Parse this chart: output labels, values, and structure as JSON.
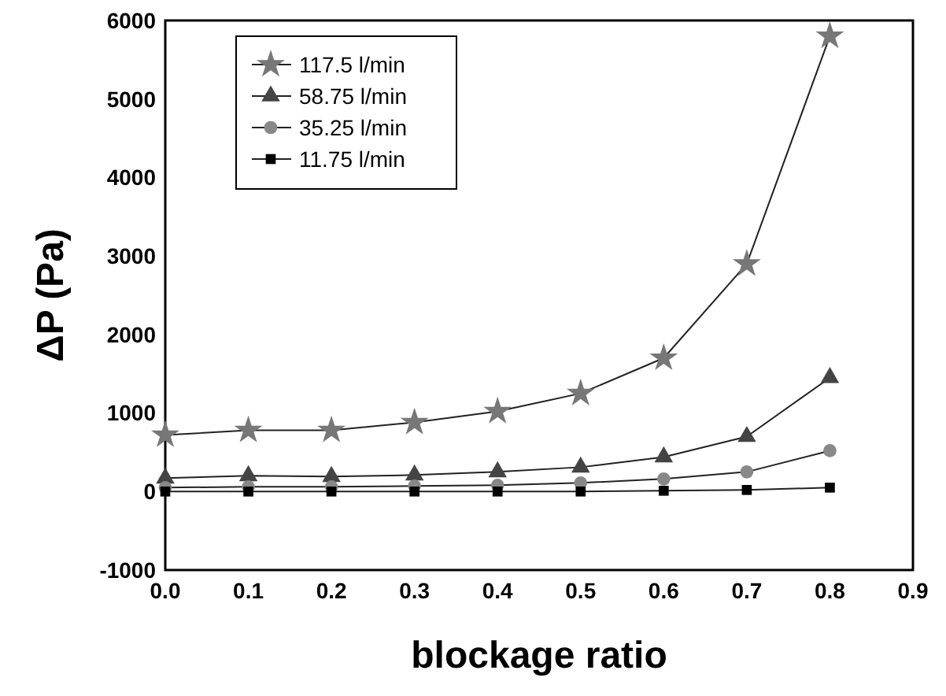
{
  "chart_data": {
    "type": "line",
    "xlabel": "blockage ratio",
    "ylabel": "ΔP (Pa)",
    "x": [
      0,
      0.1,
      0.2,
      0.3,
      0.4,
      0.5,
      0.6,
      0.7,
      0.8
    ],
    "series": [
      {
        "name": "117.5 l/min",
        "color": "#777777",
        "marker": "star",
        "values": [
          720,
          780,
          780,
          880,
          1020,
          1250,
          1700,
          2900,
          5800
        ]
      },
      {
        "name": "58.75 l/min",
        "color": "#444444",
        "marker": "triangle",
        "values": [
          170,
          200,
          190,
          210,
          250,
          310,
          440,
          700,
          1450
        ]
      },
      {
        "name": "35.25 l/min",
        "color": "#888888",
        "marker": "circle",
        "values": [
          50,
          60,
          60,
          70,
          80,
          110,
          160,
          250,
          520
        ]
      },
      {
        "name": "11.75 l/min",
        "color": "#000000",
        "marker": "square",
        "values": [
          0,
          0,
          0,
          0,
          0,
          0,
          10,
          20,
          50
        ]
      }
    ],
    "xlim": [
      0,
      0.9
    ],
    "xticks": [
      {
        "value": 0,
        "label": "0.0"
      },
      {
        "value": 0.1,
        "label": "0.1"
      },
      {
        "value": 0.2,
        "label": "0.2"
      },
      {
        "value": 0.3,
        "label": "0.3"
      },
      {
        "value": 0.4,
        "label": "0.4"
      },
      {
        "value": 0.5,
        "label": "0.5"
      },
      {
        "value": 0.6,
        "label": "0.6"
      },
      {
        "value": 0.7,
        "label": "0.7"
      },
      {
        "value": 0.8,
        "label": "0.8"
      },
      {
        "value": 0.9,
        "label": "0.9"
      }
    ],
    "ylim": [
      -1000,
      6000
    ],
    "yticks": [
      -1000,
      0,
      1000,
      2000,
      3000,
      4000,
      5000,
      6000
    ],
    "grid": false,
    "legend": "top left"
  }
}
